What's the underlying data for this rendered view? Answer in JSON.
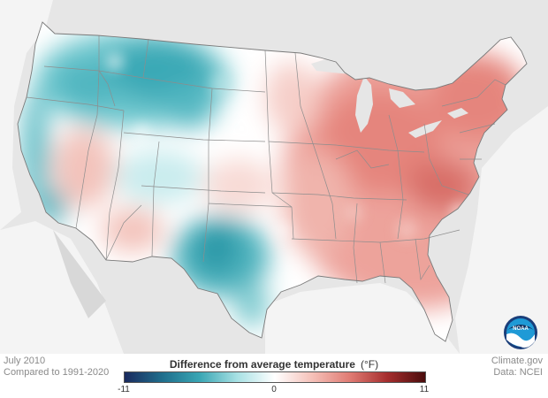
{
  "header": {
    "date": "July 2010",
    "baseline": "Compared to 1991-2020"
  },
  "credits": {
    "source": "Climate.gov",
    "data": "Data: NCEI"
  },
  "legend": {
    "title": "Difference from average temperature",
    "unit": "(°F)",
    "min_label": "-11",
    "mid_label": "0",
    "max_label": "11",
    "min": -11,
    "max": 11,
    "colors": [
      "#1a2a5e",
      "#1f6e8c",
      "#3aa6b4",
      "#a8e1e4",
      "#ffffff",
      "#f5c0b8",
      "#e07b73",
      "#a52d2d",
      "#4a0c0c"
    ]
  },
  "logo": {
    "text": "NOAA",
    "icon": "noaa-logo-icon"
  },
  "map": {
    "region": "Contiguous United States",
    "cool_anomaly_color": "#3ab0be",
    "warm_anomaly_color": "#e8827a",
    "land_outside_color": "#e6e6e6"
  }
}
